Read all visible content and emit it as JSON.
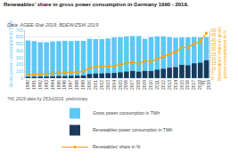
{
  "chart_data": {
    "type": "bar",
    "title": "Renewables’ share in gross power consumption in Germany 1990 - 2019.",
    "subtitle": "Data: AGEE-Stat 2019; BDEW/ZSW 2019",
    "footnote": "*H1 2019 data by 25Jul2019, preliminary",
    "categories": [
      "1990",
      "1991",
      "1992",
      "1993",
      "1994",
      "1995",
      "1996",
      "1997",
      "1998",
      "1999",
      "2000",
      "2001",
      "2002",
      "2003",
      "2004",
      "2005",
      "2006",
      "2007",
      "2008",
      "2009",
      "2010",
      "2011",
      "2012",
      "2013",
      "2014",
      "2015",
      "2016",
      "2017",
      "2018",
      "H1\n2019"
    ],
    "series": [
      {
        "name": "Gross power consumption in TWh",
        "color": "#5BC8F5",
        "values": [
          550,
          540,
          525,
          525,
          535,
          540,
          545,
          540,
          545,
          545,
          575,
          570,
          570,
          580,
          595,
          600,
          610,
          615,
          615,
          575,
          600,
          610,
          610,
          600,
          590,
          595,
          595,
          600,
          595,
          600
        ]
      },
      {
        "name": "Renewables power consumption in TWh",
        "color": "#1a3a5c",
        "values": [
          19,
          20,
          22,
          22,
          25,
          29,
          29,
          32,
          35,
          38,
          61,
          67,
          68,
          72,
          75,
          84,
          95,
          104,
          93,
          104,
          102,
          123,
          136,
          152,
          160,
          193,
          188,
          216,
          225,
          260
        ]
      },
      {
        "name": "Renewables’ share in %",
        "type": "line",
        "axis": "y2",
        "color": "#FFA500",
        "marker": "diamond",
        "line_style": "solid",
        "values": [
          3.4,
          3.7,
          4.2,
          4.2,
          4.7,
          5.4,
          5.3,
          5.9,
          6.4,
          7.0,
          10.6,
          11.7,
          11.9,
          12.4,
          12.6,
          14.0,
          15.6,
          16.9,
          15.1,
          18.1,
          17.0,
          20.2,
          22.3,
          25.3,
          27.1,
          32.5,
          31.6,
          36.0,
          37.8,
          47.0
        ]
      }
    ],
    "ylabel": "Gross power consumption in TWh",
    "y2label": "Renewables’ share in gross power consumption in %",
    "ylim": [
      0,
      700
    ],
    "yticks": [
      0,
      100,
      200,
      300,
      400,
      500,
      600,
      700
    ],
    "y2lim": [
      0,
      50
    ],
    "y2ticks": [
      0,
      5,
      10,
      15,
      20,
      25,
      30,
      35,
      40,
      45,
      50
    ],
    "grid": true,
    "legend": "bottom"
  }
}
